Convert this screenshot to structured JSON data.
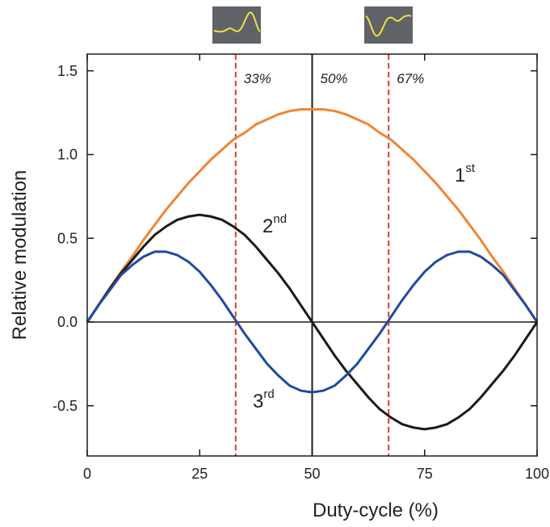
{
  "chart_data": {
    "type": "line",
    "x_label": "Duty-cycle (%)",
    "y_label": "Relative modulation",
    "x": [
      0,
      2.5,
      5,
      7.5,
      10,
      12.5,
      15,
      17.5,
      20,
      22.5,
      25,
      27.5,
      30,
      32.5,
      35,
      37.5,
      40,
      42.5,
      45,
      47.5,
      50,
      52.5,
      55,
      57.5,
      60,
      62.5,
      65,
      67.5,
      70,
      72.5,
      75,
      77.5,
      80,
      82.5,
      85,
      87.5,
      90,
      92.5,
      95,
      97.5,
      100
    ],
    "series": [
      {
        "label": {
          "main": "1",
          "sup": "st"
        },
        "color": "#f08536",
        "values": [
          0,
          0.1,
          0.2,
          0.3,
          0.39,
          0.49,
          0.58,
          0.67,
          0.75,
          0.83,
          0.9,
          0.97,
          1.03,
          1.09,
          1.13,
          1.18,
          1.21,
          1.24,
          1.26,
          1.27,
          1.27,
          1.27,
          1.26,
          1.24,
          1.21,
          1.18,
          1.13,
          1.09,
          1.03,
          0.97,
          0.9,
          0.83,
          0.75,
          0.67,
          0.58,
          0.49,
          0.39,
          0.3,
          0.2,
          0.1,
          0
        ]
      },
      {
        "label": {
          "main": "2",
          "sup": "nd"
        },
        "color": "#1a1a1a",
        "values": [
          0,
          0.1,
          0.2,
          0.29,
          0.37,
          0.45,
          0.52,
          0.57,
          0.61,
          0.63,
          0.64,
          0.63,
          0.61,
          0.57,
          0.52,
          0.45,
          0.37,
          0.29,
          0.2,
          0.1,
          0,
          -0.1,
          -0.2,
          -0.29,
          -0.37,
          -0.45,
          -0.52,
          -0.57,
          -0.61,
          -0.63,
          -0.64,
          -0.63,
          -0.61,
          -0.57,
          -0.52,
          -0.45,
          -0.37,
          -0.29,
          -0.2,
          -0.1,
          0
        ]
      },
      {
        "label": {
          "main": "3",
          "sup": "rd"
        },
        "color": "#1f4aa0",
        "values": [
          0,
          0.1,
          0.19,
          0.28,
          0.34,
          0.39,
          0.42,
          0.42,
          0.4,
          0.36,
          0.3,
          0.22,
          0.13,
          0.03,
          -0.07,
          -0.16,
          -0.25,
          -0.32,
          -0.38,
          -0.41,
          -0.42,
          -0.41,
          -0.38,
          -0.32,
          -0.25,
          -0.16,
          -0.07,
          0.03,
          0.13,
          0.22,
          0.3,
          0.36,
          0.4,
          0.42,
          0.42,
          0.39,
          0.34,
          0.28,
          0.19,
          0.1,
          0
        ]
      }
    ],
    "vlines": [
      {
        "x": 33,
        "label": "33%",
        "color": "#e03c28",
        "dashed": true
      },
      {
        "x": 50,
        "label": "50%",
        "color": "#1a1a1a",
        "dashed": false
      },
      {
        "x": 67,
        "label": "67%",
        "color": "#e03c28",
        "dashed": true
      }
    ],
    "xlim": [
      0,
      100
    ],
    "xticks": [
      0,
      25,
      50,
      75,
      100
    ],
    "ylim": [
      -0.8,
      1.6
    ],
    "yticks": [
      {
        "value": -0.5,
        "label": "-0.5"
      },
      {
        "value": 0,
        "label": "0.0"
      },
      {
        "value": 0.5,
        "label": "0.5"
      },
      {
        "value": 1,
        "label": "1.0"
      },
      {
        "value": 1.5,
        "label": "1.5"
      }
    ]
  }
}
